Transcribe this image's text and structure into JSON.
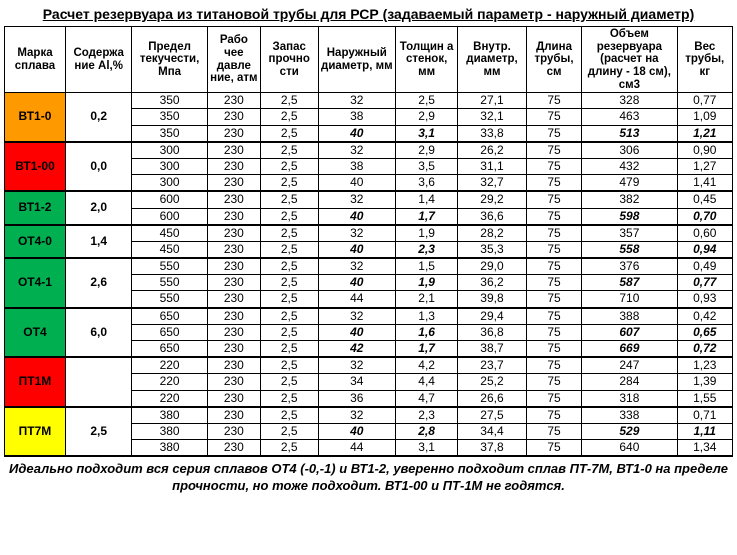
{
  "title": "Расчет резервуара из титановой трубы для РСР (задаваемый параметр - наружный диаметр)",
  "headers": [
    "Марка сплава",
    "Содержа ние Al,%",
    "Предел текучести, Мпа",
    "Рабо чее давле ние, атм",
    "Запас прочно сти",
    "Наружный диаметр, мм",
    "Толщин а стенок, мм",
    "Внутр. диаметр, мм",
    "Длина трубы, см",
    "Объем резервуара (расчет на длину - 18 см), см3",
    "Вес трубы, кг"
  ],
  "col_widths": [
    "55",
    "60",
    "68",
    "48",
    "52",
    "70",
    "56",
    "62",
    "50",
    "86",
    "50"
  ],
  "alloy_colors": {
    "orange": "#ff9900",
    "red": "#ff0000",
    "green": "#00b050",
    "yellow": "#ffff00"
  },
  "groups": [
    {
      "alloy": "ВТ1-0",
      "al": "0,2",
      "color": "orange",
      "rows": [
        [
          "350",
          "230",
          "2,5",
          "32",
          "2,5",
          "27,1",
          "75",
          "328",
          "0,77"
        ],
        [
          "350",
          "230",
          "2,5",
          "38",
          "2,9",
          "32,1",
          "75",
          "463",
          "1,09"
        ],
        [
          "350",
          "230",
          "2,5",
          "40",
          "3,1",
          "33,8",
          "75",
          "513",
          "1,21"
        ]
      ],
      "italic": [
        2
      ]
    },
    {
      "alloy": "ВТ1-00",
      "al": "0,0",
      "color": "red",
      "rows": [
        [
          "300",
          "230",
          "2,5",
          "32",
          "2,9",
          "26,2",
          "75",
          "306",
          "0,90"
        ],
        [
          "300",
          "230",
          "2,5",
          "38",
          "3,5",
          "31,1",
          "75",
          "432",
          "1,27"
        ],
        [
          "300",
          "230",
          "2,5",
          "40",
          "3,6",
          "32,7",
          "75",
          "479",
          "1,41"
        ]
      ],
      "italic": []
    },
    {
      "alloy": "ВТ1-2",
      "al": "2,0",
      "color": "green",
      "rows": [
        [
          "600",
          "230",
          "2,5",
          "32",
          "1,4",
          "29,2",
          "75",
          "382",
          "0,45"
        ],
        [
          "600",
          "230",
          "2,5",
          "40",
          "1,7",
          "36,6",
          "75",
          "598",
          "0,70"
        ]
      ],
      "italic": [
        1
      ]
    },
    {
      "alloy": "ОТ4-0",
      "al": "1,4",
      "color": "green",
      "rows": [
        [
          "450",
          "230",
          "2,5",
          "32",
          "1,9",
          "28,2",
          "75",
          "357",
          "0,60"
        ],
        [
          "450",
          "230",
          "2,5",
          "40",
          "2,3",
          "35,3",
          "75",
          "558",
          "0,94"
        ]
      ],
      "italic": [
        1
      ]
    },
    {
      "alloy": "ОТ4-1",
      "al": "2,6",
      "color": "green",
      "rows": [
        [
          "550",
          "230",
          "2,5",
          "32",
          "1,5",
          "29,0",
          "75",
          "376",
          "0,49"
        ],
        [
          "550",
          "230",
          "2,5",
          "40",
          "1,9",
          "36,2",
          "75",
          "587",
          "0,77"
        ],
        [
          "550",
          "230",
          "2,5",
          "44",
          "2,1",
          "39,8",
          "75",
          "710",
          "0,93"
        ]
      ],
      "italic": [
        1
      ]
    },
    {
      "alloy": "ОТ4",
      "al": "6,0",
      "color": "green",
      "rows": [
        [
          "650",
          "230",
          "2,5",
          "32",
          "1,3",
          "29,4",
          "75",
          "388",
          "0,42"
        ],
        [
          "650",
          "230",
          "2,5",
          "40",
          "1,6",
          "36,8",
          "75",
          "607",
          "0,65"
        ],
        [
          "650",
          "230",
          "2,5",
          "42",
          "1,7",
          "38,7",
          "75",
          "669",
          "0,72"
        ]
      ],
      "italic": [
        1,
        2
      ]
    },
    {
      "alloy": "ПТ1М",
      "al": "",
      "color": "red",
      "rows": [
        [
          "220",
          "230",
          "2,5",
          "32",
          "4,2",
          "23,7",
          "75",
          "247",
          "1,23"
        ],
        [
          "220",
          "230",
          "2,5",
          "34",
          "4,4",
          "25,2",
          "75",
          "284",
          "1,39"
        ],
        [
          "220",
          "230",
          "2,5",
          "36",
          "4,7",
          "26,6",
          "75",
          "318",
          "1,55"
        ]
      ],
      "italic": []
    },
    {
      "alloy": "ПТ7М",
      "al": "2,5",
      "color": "yellow",
      "rows": [
        [
          "380",
          "230",
          "2,5",
          "32",
          "2,3",
          "27,5",
          "75",
          "338",
          "0,71"
        ],
        [
          "380",
          "230",
          "2,5",
          "40",
          "2,8",
          "34,4",
          "75",
          "529",
          "1,11"
        ],
        [
          "380",
          "230",
          "2,5",
          "44",
          "3,1",
          "37,8",
          "75",
          "640",
          "1,34"
        ]
      ],
      "italic": [
        1
      ]
    }
  ],
  "footer": "Идеально подходит вся серия сплавов ОТ4 (-0,-1) и ВТ1-2, уверенно подходит сплав ПТ-7М, ВТ1-0  на пределе прочности, но тоже подходит. ВТ1-00 и ПТ-1М не годятся."
}
